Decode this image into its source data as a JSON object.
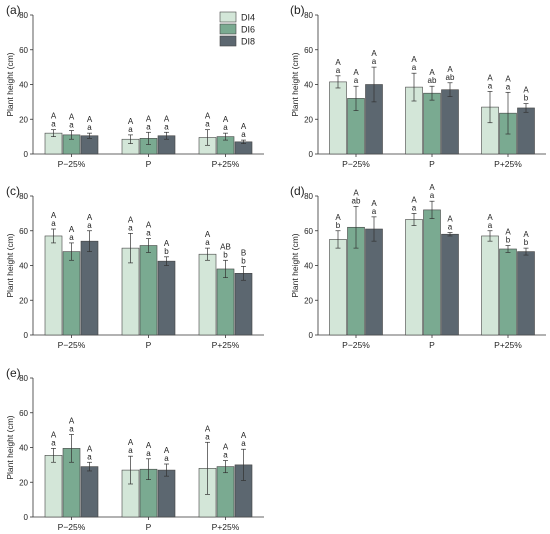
{
  "legend": {
    "placement": "top-right of panel (a)",
    "entries": [
      {
        "name": "DI4",
        "color": "#d3e6d8"
      },
      {
        "name": "DI6",
        "color": "#7aaa91"
      },
      {
        "name": "DI8",
        "color": "#5c6770"
      }
    ]
  },
  "chart_data": [
    {
      "type": "bar",
      "panel_label": "(a)",
      "categories": [
        "P−25%",
        "P",
        "P+25%"
      ],
      "ylabel": "Plant height (cm)",
      "ylim": [
        0,
        80
      ],
      "yticks": [
        0,
        20,
        40,
        60,
        80
      ],
      "series": [
        {
          "name": "DI4",
          "values": [
            12,
            8.5,
            9.5
          ],
          "errors": [
            2,
            2.5,
            4.5
          ],
          "upper_letters": [
            "A",
            "A",
            "A"
          ],
          "lower_letters": [
            "a",
            "a",
            "a"
          ]
        },
        {
          "name": "DI6",
          "values": [
            11,
            9,
            10
          ],
          "errors": [
            2.5,
            3.5,
            2
          ],
          "upper_letters": [
            "A",
            "A",
            "A"
          ],
          "lower_letters": [
            "a",
            "a",
            "a"
          ]
        },
        {
          "name": "DI8",
          "values": [
            10.5,
            10.5,
            7
          ],
          "errors": [
            1.5,
            2,
            1
          ],
          "upper_letters": [
            "A",
            "A",
            "A"
          ],
          "lower_letters": [
            "a",
            "a",
            "a"
          ]
        }
      ]
    },
    {
      "type": "bar",
      "panel_label": "(b)",
      "categories": [
        "P−25%",
        "P",
        "P+25%"
      ],
      "ylabel": "Plant height (cm)",
      "ylim": [
        0,
        80
      ],
      "yticks": [
        0,
        20,
        40,
        60,
        80
      ],
      "series": [
        {
          "name": "DI4",
          "values": [
            41.5,
            38.5,
            27
          ],
          "errors": [
            3.5,
            8,
            9
          ],
          "upper_letters": [
            "A",
            "A",
            "A"
          ],
          "lower_letters": [
            "a",
            "a",
            "a"
          ]
        },
        {
          "name": "DI6",
          "values": [
            32,
            35,
            23.5
          ],
          "errors": [
            7,
            4,
            12
          ],
          "upper_letters": [
            "A",
            "A",
            "A"
          ],
          "lower_letters": [
            "a",
            "ab",
            "a"
          ]
        },
        {
          "name": "DI8",
          "values": [
            40,
            37,
            26.5
          ],
          "errors": [
            10,
            4,
            2.5
          ],
          "upper_letters": [
            "A",
            "A",
            "A"
          ],
          "lower_letters": [
            "a",
            "ab",
            "b"
          ]
        }
      ]
    },
    {
      "type": "bar",
      "panel_label": "(c)",
      "categories": [
        "P−25%",
        "P",
        "P+25%"
      ],
      "ylabel": "Plant height (cm)",
      "ylim": [
        0,
        80
      ],
      "yticks": [
        0,
        20,
        40,
        60,
        80
      ],
      "series": [
        {
          "name": "DI4",
          "values": [
            57,
            50,
            46.5
          ],
          "errors": [
            4,
            8.5,
            3.5
          ],
          "upper_letters": [
            "A",
            "A",
            "A"
          ],
          "lower_letters": [
            "a",
            "a",
            "a"
          ]
        },
        {
          "name": "DI6",
          "values": [
            48,
            51.5,
            38
          ],
          "errors": [
            5,
            4,
            5
          ],
          "upper_letters": [
            "A",
            "A",
            "AB"
          ],
          "lower_letters": [
            "a",
            "a",
            "b"
          ]
        },
        {
          "name": "DI8",
          "values": [
            54,
            42.5,
            35.5
          ],
          "errors": [
            6,
            2.5,
            4
          ],
          "upper_letters": [
            "A",
            "A",
            "B"
          ],
          "lower_letters": [
            "a",
            "b",
            "b"
          ]
        }
      ]
    },
    {
      "type": "bar",
      "panel_label": "(d)",
      "categories": [
        "P−25%",
        "P",
        "P+25%"
      ],
      "ylabel": "Plant height (cm)",
      "ylim": [
        0,
        80
      ],
      "yticks": [
        0,
        20,
        40,
        60,
        80
      ],
      "series": [
        {
          "name": "DI4",
          "values": [
            55,
            66.5,
            57
          ],
          "errors": [
            5,
            3.5,
            3
          ],
          "upper_letters": [
            "A",
            "A",
            "A"
          ],
          "lower_letters": [
            "b",
            "a",
            "a"
          ]
        },
        {
          "name": "DI6",
          "values": [
            62,
            72,
            49.5
          ],
          "errors": [
            12,
            5,
            2
          ],
          "upper_letters": [
            "A",
            "A",
            "A"
          ],
          "lower_letters": [
            "ab",
            "a",
            "b"
          ]
        },
        {
          "name": "DI8",
          "values": [
            61,
            58,
            48
          ],
          "errors": [
            7,
            1,
            2
          ],
          "upper_letters": [
            "A",
            "A",
            "A"
          ],
          "lower_letters": [
            "a",
            "a",
            "b"
          ]
        }
      ]
    },
    {
      "type": "bar",
      "panel_label": "(e)",
      "categories": [
        "P−25%",
        "P",
        "P+25%"
      ],
      "ylabel": "Plant height (cm)",
      "ylim": [
        0,
        80
      ],
      "yticks": [
        0,
        20,
        40,
        60,
        80
      ],
      "series": [
        {
          "name": "DI4",
          "values": [
            35.5,
            27,
            28
          ],
          "errors": [
            4,
            8,
            15
          ],
          "upper_letters": [
            "A",
            "A",
            "A"
          ],
          "lower_letters": [
            "a",
            "a",
            "a"
          ]
        },
        {
          "name": "DI6",
          "values": [
            39.5,
            27.5,
            29
          ],
          "errors": [
            8,
            6,
            3.5
          ],
          "upper_letters": [
            "A",
            "A",
            "A"
          ],
          "lower_letters": [
            "a",
            "a",
            "a"
          ]
        },
        {
          "name": "DI8",
          "values": [
            29,
            27,
            30
          ],
          "errors": [
            2.5,
            3.5,
            9
          ],
          "upper_letters": [
            "A",
            "A",
            "A"
          ],
          "lower_letters": [
            "a",
            "a",
            "a"
          ]
        }
      ]
    }
  ]
}
